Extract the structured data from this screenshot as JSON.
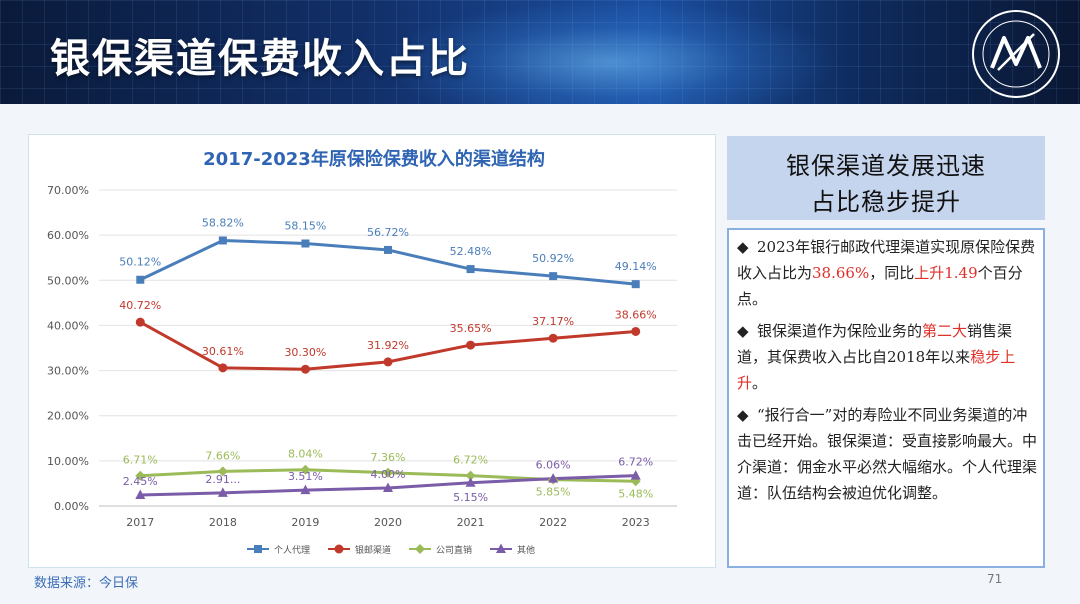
{
  "header": {
    "title": "银保渠道保费收入占比"
  },
  "colors": {
    "personal": "#4a7ebb",
    "bank": "#c0392b",
    "company": "#9bbb59",
    "other": "#7b5ca8",
    "title": "#2f64b3"
  },
  "chart_data": {
    "type": "line",
    "title": "2017-2023年原保险保费收入的渠道结构",
    "x": [
      "2017",
      "2018",
      "2019",
      "2020",
      "2021",
      "2022",
      "2023"
    ],
    "yticks": [
      "0.00%",
      "10.00%",
      "20.00%",
      "30.00%",
      "40.00%",
      "50.00%",
      "60.00%",
      "70.00%"
    ],
    "ylim": [
      0,
      70
    ],
    "legend_position": "bottom",
    "series": [
      {
        "key": "personal",
        "name": "个人代理",
        "marker": "square",
        "values": [
          50.12,
          58.82,
          58.15,
          56.72,
          52.48,
          50.92,
          49.14
        ],
        "labels": [
          "50.12%",
          "58.82%",
          "58.15%",
          "56.72%",
          "52.48%",
          "50.92%",
          "49.14%"
        ]
      },
      {
        "key": "bank",
        "name": "银邮渠道",
        "marker": "circle",
        "values": [
          40.72,
          30.61,
          30.3,
          31.92,
          35.65,
          37.17,
          38.66
        ],
        "labels": [
          "40.72%",
          "30.61%",
          "30.30%",
          "31.92%",
          "35.65%",
          "37.17%",
          "38.66%"
        ]
      },
      {
        "key": "company",
        "name": "公司直销",
        "marker": "diamond",
        "values": [
          6.71,
          7.66,
          8.04,
          7.36,
          6.72,
          5.85,
          5.48
        ],
        "labels": [
          "6.71%",
          "7.66%",
          "8.04%",
          "7.36%",
          "6.72%",
          "5.85%",
          "5.48%"
        ]
      },
      {
        "key": "other",
        "name": "其他",
        "marker": "triangle",
        "values": [
          2.45,
          2.91,
          3.51,
          4.0,
          5.15,
          6.06,
          6.72
        ],
        "labels": [
          "2.45%",
          "2.91...",
          "3.51%",
          "4.00%",
          "5.15%",
          "6.06%",
          "6.72%"
        ]
      }
    ]
  },
  "panel": {
    "heading_line1": "银保渠道发展迅速",
    "heading_line2": "占比稳步提升",
    "bullet_symbol": "◆",
    "b1_p1": "2023年银行邮政代理渠道实现原保险保费收入占比为",
    "b1_hl1": "38.66%",
    "b1_p2": "，同比",
    "b1_hl2": "上升1.49",
    "b1_p3": "个百分点。",
    "b2_p1": "银保渠道作为保险业务的",
    "b2_hl1": "第二大",
    "b2_p2": "销售渠道，其保费收入占比自2018年以来",
    "b2_hl2": "稳步上升",
    "b2_p3": "。",
    "b3_text": "“报行合一”对的寿险业不同业务渠道的冲击已经开始。银保渠道：受直接影响最大。中介渠道：佣金水平必然大幅缩水。个人代理渠道：队伍结构会被迫优化调整。"
  },
  "footer": {
    "source": "数据来源：今日保",
    "page": "71"
  }
}
